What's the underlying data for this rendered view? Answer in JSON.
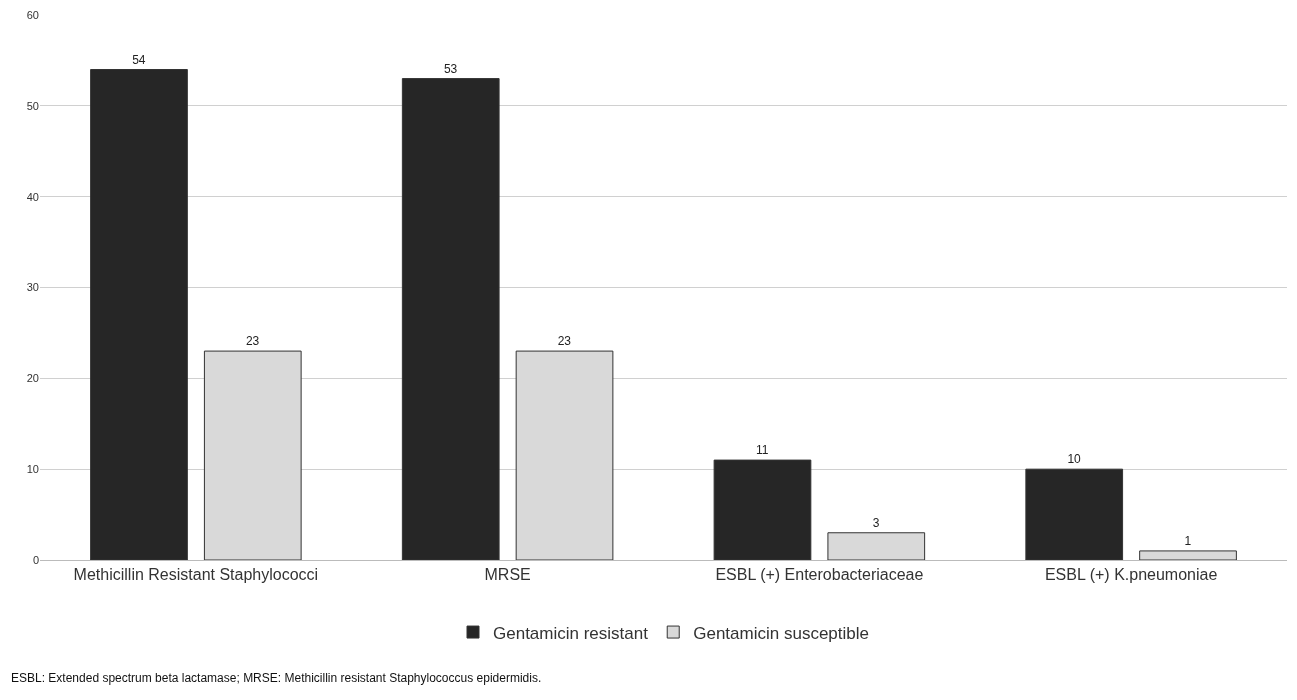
{
  "chart_data": {
    "type": "bar",
    "categories": [
      "Methicillin Resistant Staphylococci",
      "MRSE",
      "ESBL (+) Enterobacteriaceae",
      "ESBL (+) K.pneumoniae"
    ],
    "series": [
      {
        "name": "Gentamicin resistant",
        "color": "#262626",
        "values": [
          54,
          53,
          11,
          10
        ]
      },
      {
        "name": "Gentamicin susceptible",
        "color": "#d9d9d9",
        "values": [
          23,
          23,
          3,
          1
        ]
      }
    ],
    "ylim": [
      0,
      60
    ],
    "yticks": [
      0,
      10,
      20,
      30,
      40,
      50,
      60
    ],
    "grid": "y",
    "legend": "bottom",
    "data_labels": true,
    "annotations": [
      "ESBL: Extended spectrum beta lactamase; MRSE: Methicillin resistant Staphylococcus epidermidis."
    ]
  }
}
